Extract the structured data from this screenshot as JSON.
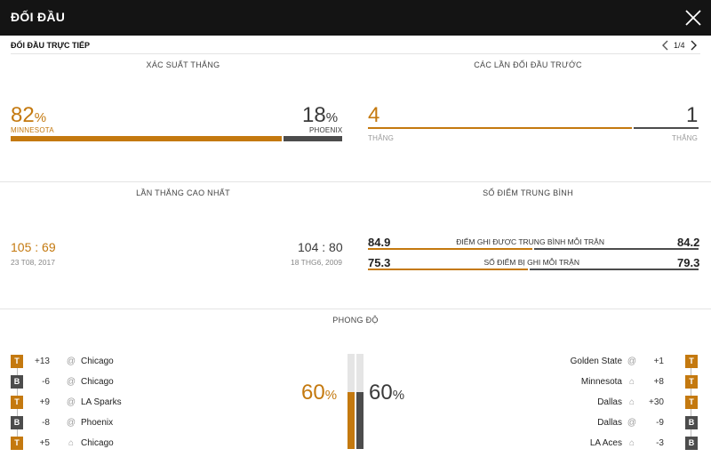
{
  "header": {
    "title": "ĐỐI ĐẦU"
  },
  "subheader": {
    "title": "ĐỐI ĐẦU TRỰC TIẾP",
    "pager": "1/4"
  },
  "win_probability": {
    "title": "XÁC SUẤT THẮNG",
    "home": {
      "value": "82",
      "unit": "%",
      "team": "MINNESOTA",
      "fraction": 0.82
    },
    "away": {
      "value": "18",
      "unit": "%",
      "team": "PHOENIX",
      "fraction": 0.18
    }
  },
  "previous_meetings": {
    "title": "CÁC LẦN ĐỐI ĐẦU TRƯỚC",
    "home": {
      "value": "4",
      "label": "THẮNG"
    },
    "away": {
      "value": "1",
      "label": "THẮNG"
    },
    "home_fraction": 0.8
  },
  "biggest_win": {
    "title": "LẦN THẮNG CAO NHẤT",
    "home": {
      "score": "105 : 69",
      "date": "23 T08, 2017"
    },
    "away": {
      "score": "104 : 80",
      "date": "18 THG6, 2009"
    }
  },
  "average_points": {
    "title": "SỐ ĐIỂM TRUNG BÌNH",
    "rows": [
      {
        "label": "ĐIỂM GHI ĐƯỢC TRUNG BÌNH MỖI TRẬN",
        "home": "84.9",
        "away": "84.2",
        "home_fraction": 0.5
      },
      {
        "label": "SỐ ĐIỂM BỊ GHI MỖI TRẬN",
        "home": "75.3",
        "away": "79.3",
        "home_fraction": 0.49
      }
    ]
  },
  "form": {
    "title": "PHONG ĐỘ",
    "home_pct": {
      "value": "60",
      "unit": "%",
      "fraction": 0.6
    },
    "away_pct": {
      "value": "60",
      "unit": "%",
      "fraction": 0.6
    },
    "home": [
      {
        "result": "T",
        "diff": "+13",
        "venue": "away",
        "opponent": "Chicago"
      },
      {
        "result": "B",
        "diff": "-6",
        "venue": "away",
        "opponent": "Chicago"
      },
      {
        "result": "T",
        "diff": "+9",
        "venue": "away",
        "opponent": "LA Sparks"
      },
      {
        "result": "B",
        "diff": "-8",
        "venue": "away",
        "opponent": "Phoenix"
      },
      {
        "result": "T",
        "diff": "+5",
        "venue": "home",
        "opponent": "Chicago"
      }
    ],
    "away": [
      {
        "result": "T",
        "diff": "+1",
        "venue": "away",
        "opponent": "Golden State"
      },
      {
        "result": "T",
        "diff": "+8",
        "venue": "home",
        "opponent": "Minnesota"
      },
      {
        "result": "T",
        "diff": "+30",
        "venue": "home",
        "opponent": "Dallas"
      },
      {
        "result": "B",
        "diff": "-9",
        "venue": "away",
        "opponent": "Dallas"
      },
      {
        "result": "B",
        "diff": "-3",
        "venue": "home",
        "opponent": "LA Aces"
      }
    ]
  },
  "colors": {
    "accent": "#c4790f",
    "dark": "#4c4c4c",
    "header_bg": "#141414"
  }
}
